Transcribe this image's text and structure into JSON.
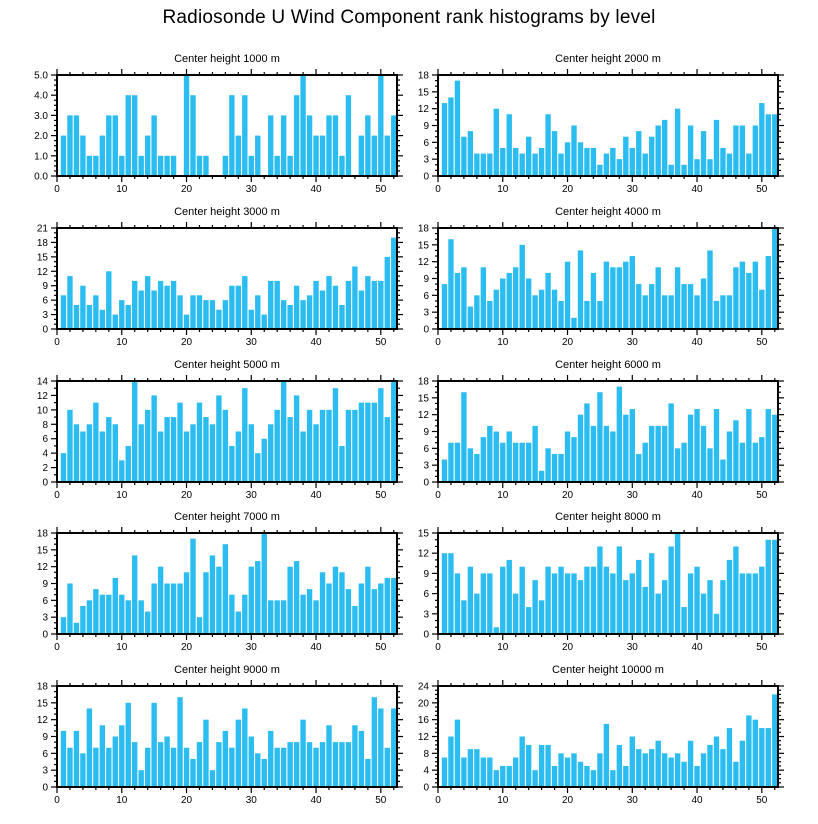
{
  "title": "Radiosonde U Wind Component rank histograms by level",
  "chart_data": {
    "type": "bar",
    "subtype": "rank-histogram-grid",
    "grid": {
      "rows": 5,
      "cols": 2
    },
    "x_bins": 52,
    "x_tick_labels": [
      0,
      10,
      20,
      30,
      40,
      50
    ],
    "x_minor_step": 2,
    "bar_color": "#2BBDF0",
    "axis_color": "#000000",
    "background_color": "#ffffff",
    "panels": [
      {
        "title": "Center height 1000 m",
        "ylim": [
          0,
          5
        ],
        "ytick_step": 1,
        "yminor_step": 0.25,
        "decimals": 1,
        "values": [
          2,
          3,
          3,
          2,
          1,
          1,
          2,
          3,
          3,
          1,
          4,
          4,
          1,
          2,
          3,
          1,
          1,
          1,
          0,
          5,
          4,
          1,
          1,
          0,
          0,
          1,
          4,
          2,
          4,
          1,
          2,
          0,
          3,
          1,
          3,
          1,
          4,
          5,
          3,
          2,
          2,
          3,
          3,
          1,
          4,
          0,
          2,
          3,
          2,
          5,
          2,
          3
        ]
      },
      {
        "title": "Center height 2000 m",
        "ylim": [
          0,
          18
        ],
        "ytick_step": 3,
        "yminor_step": 1,
        "decimals": 0,
        "values": [
          13,
          14,
          17,
          7,
          8,
          4,
          4,
          4,
          12,
          5,
          11,
          5,
          4,
          7,
          4,
          5,
          11,
          8,
          4,
          6,
          9,
          6,
          5,
          5,
          2,
          4,
          5,
          3,
          7,
          5,
          8,
          4,
          7,
          9,
          10,
          2,
          12,
          2,
          9,
          3,
          8,
          3,
          10,
          5,
          4,
          9,
          9,
          4,
          9,
          13,
          11,
          11
        ]
      },
      {
        "title": "Center height 3000 m",
        "ylim": [
          0,
          21
        ],
        "ytick_step": 3,
        "yminor_step": 1,
        "decimals": 0,
        "values": [
          7,
          11,
          5,
          9,
          5,
          7,
          4,
          12,
          3,
          6,
          5,
          10,
          8,
          11,
          8,
          10,
          9,
          10,
          7,
          3,
          7,
          7,
          6,
          6,
          4,
          6,
          9,
          9,
          11,
          4,
          7,
          3,
          10,
          10,
          6,
          5,
          9,
          6,
          7,
          10,
          8,
          11,
          9,
          5,
          10,
          13,
          8,
          11,
          10,
          10,
          15,
          19
        ]
      },
      {
        "title": "Center height 4000 m",
        "ylim": [
          0,
          18
        ],
        "ytick_step": 3,
        "yminor_step": 1,
        "decimals": 0,
        "values": [
          8,
          16,
          10,
          11,
          4,
          6,
          11,
          5,
          7,
          9,
          10,
          11,
          15,
          9,
          6,
          7,
          10,
          7,
          5,
          12,
          2,
          14,
          5,
          10,
          5,
          12,
          11,
          11,
          12,
          13,
          8,
          6,
          8,
          11,
          6,
          6,
          11,
          8,
          8,
          6,
          9,
          14,
          5,
          6,
          6,
          11,
          12,
          10,
          12,
          7,
          13,
          18
        ]
      },
      {
        "title": "Center height 5000 m",
        "ylim": [
          0,
          14
        ],
        "ytick_step": 2,
        "yminor_step": 1,
        "decimals": 0,
        "values": [
          4,
          10,
          8,
          7,
          8,
          11,
          7,
          9,
          8,
          3,
          5,
          14,
          8,
          10,
          12,
          7,
          9,
          9,
          11,
          7,
          8,
          11,
          9,
          8,
          12,
          10,
          5,
          7,
          13,
          8,
          4,
          6,
          8,
          10,
          14,
          9,
          12,
          7,
          10,
          8,
          10,
          10,
          13,
          5,
          10,
          10,
          11,
          11,
          11,
          13,
          9,
          14
        ]
      },
      {
        "title": "Center height 6000 m",
        "ylim": [
          0,
          18
        ],
        "ytick_step": 3,
        "yminor_step": 1,
        "decimals": 0,
        "values": [
          4,
          7,
          7,
          16,
          6,
          5,
          8,
          10,
          9,
          7,
          9,
          7,
          7,
          7,
          10,
          2,
          6,
          5,
          5,
          9,
          8,
          12,
          14,
          10,
          16,
          10,
          9,
          17,
          12,
          13,
          5,
          7,
          10,
          10,
          10,
          14,
          6,
          7,
          12,
          13,
          10,
          6,
          13,
          4,
          9,
          11,
          7,
          13,
          7,
          8,
          13,
          12
        ]
      },
      {
        "title": "Center height 7000 m",
        "ylim": [
          0,
          18
        ],
        "ytick_step": 3,
        "yminor_step": 1,
        "decimals": 0,
        "values": [
          3,
          9,
          2,
          5,
          6,
          8,
          7,
          7,
          10,
          7,
          6,
          14,
          6,
          4,
          9,
          12,
          9,
          9,
          9,
          11,
          17,
          3,
          11,
          14,
          12,
          16,
          7,
          4,
          7,
          12,
          13,
          18,
          6,
          6,
          6,
          12,
          13,
          7,
          8,
          6,
          11,
          9,
          12,
          11,
          8,
          5,
          9,
          12,
          8,
          9,
          10,
          10
        ]
      },
      {
        "title": "Center height 8000 m",
        "ylim": [
          0,
          15
        ],
        "ytick_step": 3,
        "yminor_step": 1,
        "decimals": 0,
        "values": [
          12,
          12,
          9,
          5,
          10,
          6,
          9,
          9,
          1,
          10,
          11,
          6,
          10,
          4,
          8,
          5,
          10,
          9,
          10,
          9,
          9,
          8,
          10,
          10,
          13,
          10,
          9,
          13,
          8,
          9,
          11,
          7,
          12,
          6,
          8,
          13,
          15,
          4,
          9,
          10,
          6,
          8,
          3,
          8,
          11,
          13,
          9,
          9,
          9,
          10,
          14,
          14
        ]
      },
      {
        "title": "Center height 9000 m",
        "ylim": [
          0,
          18
        ],
        "ytick_step": 3,
        "yminor_step": 1,
        "decimals": 0,
        "values": [
          10,
          7,
          10,
          6,
          14,
          7,
          11,
          7,
          9,
          11,
          15,
          8,
          3,
          7,
          15,
          8,
          9,
          7,
          16,
          7,
          5,
          8,
          12,
          3,
          8,
          10,
          7,
          12,
          14,
          9,
          6,
          5,
          10,
          7,
          7,
          8,
          8,
          12,
          8,
          7,
          8,
          11,
          8,
          8,
          8,
          11,
          10,
          5,
          16,
          14,
          7,
          14
        ]
      },
      {
        "title": "Center height 10000 m",
        "ylim": [
          0,
          24
        ],
        "ytick_step": 4,
        "yminor_step": 1,
        "decimals": 0,
        "values": [
          7,
          12,
          16,
          7,
          9,
          9,
          7,
          7,
          4,
          5,
          5,
          7,
          12,
          10,
          4,
          10,
          10,
          5,
          8,
          7,
          8,
          6,
          5,
          4,
          8,
          15,
          4,
          10,
          5,
          12,
          9,
          8,
          9,
          11,
          8,
          7,
          8,
          6,
          11,
          5,
          8,
          10,
          12,
          9,
          14,
          6,
          11,
          17,
          16,
          14,
          14,
          22
        ]
      }
    ]
  }
}
